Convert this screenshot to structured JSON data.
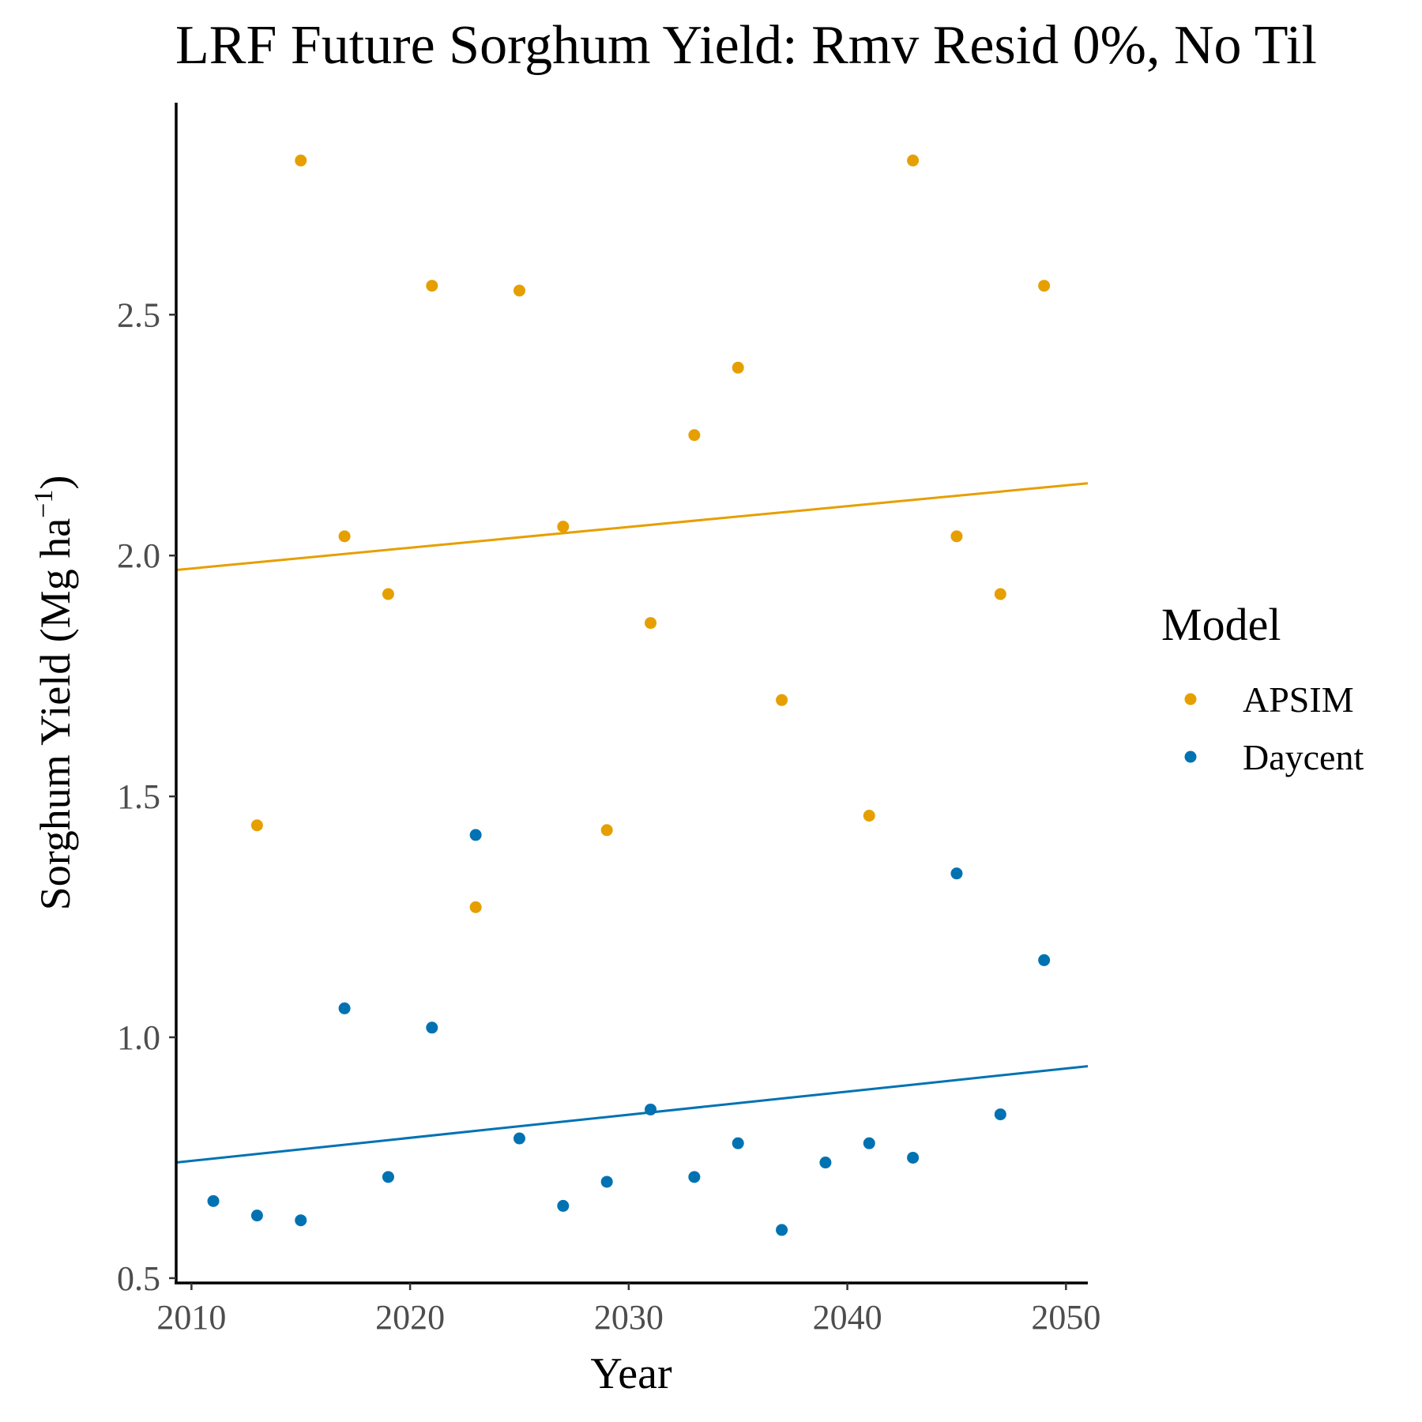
{
  "chart_data": {
    "type": "scatter",
    "title": "LRF Future Sorghum Yield:  Rmv Resid 0%, No Til",
    "xlabel": "Year",
    "ylabel_main": "Sorghum Yield (Mg ha",
    "ylabel_sup": "−1",
    "ylabel_close": ")",
    "xlim": [
      2009.3,
      2051
    ],
    "ylim": [
      0.49,
      2.94
    ],
    "xticks": [
      2010,
      2020,
      2030,
      2040,
      2050
    ],
    "xtick_labels": [
      "2010",
      "2020",
      "2030",
      "2040",
      "2050"
    ],
    "yticks": [
      0.5,
      1.0,
      1.5,
      2.0,
      2.5
    ],
    "ytick_labels": [
      "0.5",
      "1.0",
      "1.5",
      "2.0",
      "2.5"
    ],
    "grid": false,
    "legend": {
      "title": "Model",
      "position": "right"
    },
    "series": [
      {
        "name": "APSIM",
        "color": "#E69F00",
        "x": [
          2013,
          2015,
          2017,
          2019,
          2021,
          2023,
          2025,
          2027,
          2029,
          2031,
          2033,
          2035,
          2037,
          2041,
          2043,
          2045,
          2047,
          2049
        ],
        "y": [
          1.44,
          2.82,
          2.04,
          1.92,
          2.56,
          1.27,
          2.55,
          2.06,
          1.43,
          1.86,
          2.25,
          2.39,
          1.7,
          1.46,
          2.82,
          2.04,
          1.92,
          2.56
        ],
        "trend": {
          "x": [
            2009.3,
            2051
          ],
          "y": [
            1.97,
            2.15
          ]
        }
      },
      {
        "name": "Daycent",
        "color": "#0072B2",
        "x": [
          2011,
          2013,
          2015,
          2017,
          2019,
          2021,
          2023,
          2025,
          2027,
          2029,
          2031,
          2033,
          2035,
          2037,
          2039,
          2041,
          2043,
          2045,
          2047,
          2049
        ],
        "y": [
          0.66,
          0.63,
          0.62,
          1.06,
          0.71,
          1.02,
          1.42,
          0.79,
          0.65,
          0.7,
          0.85,
          0.71,
          0.78,
          0.6,
          0.74,
          0.78,
          0.75,
          1.34,
          0.84,
          1.16
        ],
        "trend": {
          "x": [
            2009.3,
            2051
          ],
          "y": [
            0.74,
            0.94
          ]
        }
      }
    ]
  }
}
